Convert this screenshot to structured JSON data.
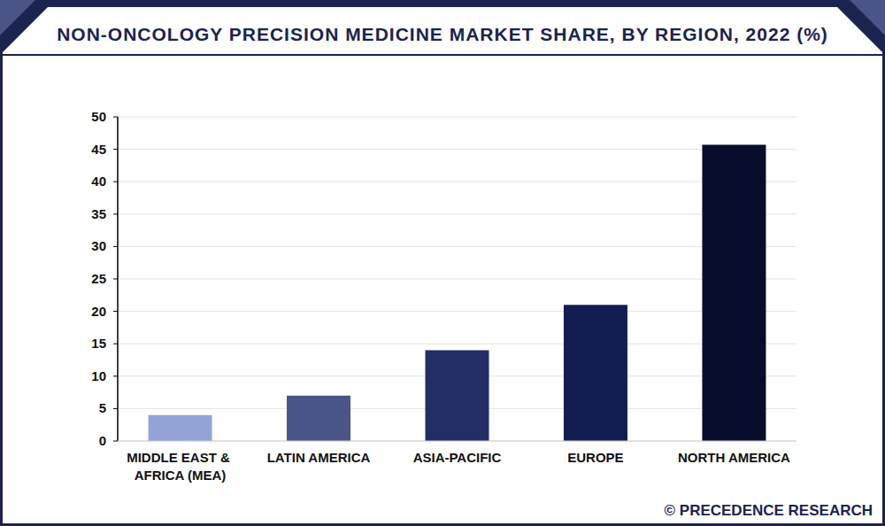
{
  "chart_data": {
    "type": "bar",
    "title": "NON-ONCOLOGY PRECISION MEDICINE MARKET SHARE, BY REGION, 2022 (%)",
    "categories": [
      "MIDDLE EAST & AFRICA (MEA)",
      "LATIN AMERICA",
      "ASIA-PACIFIC",
      "EUROPE",
      "NORTH AMERICA"
    ],
    "values": [
      4,
      7,
      14,
      21,
      45.7
    ],
    "colors": [
      "#93a3d6",
      "#4a5487",
      "#232d66",
      "#141d52",
      "#070d2b"
    ],
    "ylim": [
      0,
      50
    ],
    "yticks": [
      0,
      5,
      10,
      15,
      20,
      25,
      30,
      35,
      40,
      45,
      50
    ],
    "grid": true,
    "annotations": [
      "© PRECEDENCE RESEARCH"
    ]
  }
}
